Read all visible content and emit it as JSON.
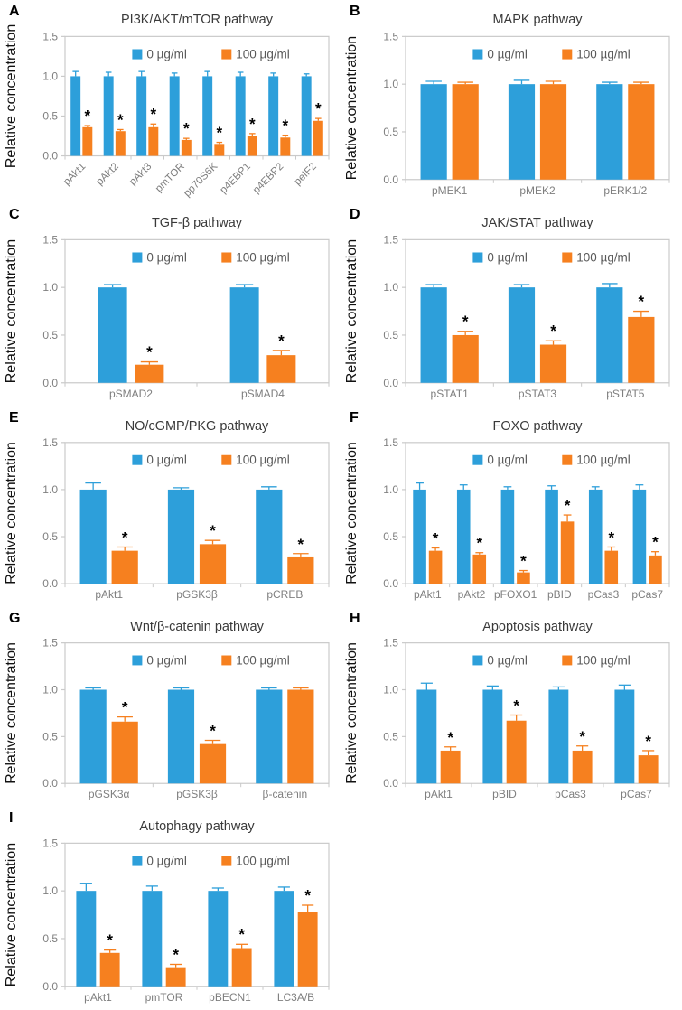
{
  "figure": {
    "ylabel": "Relative concentration",
    "legend_labels": [
      "0 µg/ml",
      "100 µg/ml"
    ],
    "significance_marker": "*"
  },
  "style": {
    "series_colors": [
      "#2D9FDA",
      "#F6801F"
    ],
    "axis_color": "#CACACA",
    "tick_label_color": "#7F7F7F",
    "xlabel_color": "#7F7F7F",
    "legend_text_color": "#595959",
    "title_color": "#3A3A3A",
    "ylabel_color": "#111111",
    "sig_color": "#000000",
    "background": "#FFFFFF"
  },
  "chart_data": [
    {
      "type": "bar",
      "panel": "A",
      "title": "PI3K/AKT/mTOR pathway",
      "ylabel": "Relative concentration",
      "ylim": [
        0,
        1.5
      ],
      "yticks": [
        "0.0",
        "0.5",
        "1.0",
        "1.5"
      ],
      "grid": false,
      "legend_position": "top-inside",
      "rotated_xticks": true,
      "categories": [
        "pAkt1",
        "pAkt2",
        "pAkt3",
        "pmTOR",
        "pp70S6K",
        "p4EBP1",
        "p4EBP2",
        "peIF2"
      ],
      "series": [
        {
          "name": "0 µg/ml",
          "values": [
            1.0,
            1.0,
            1.0,
            1.0,
            1.0,
            1.0,
            1.0,
            1.0
          ],
          "errors": [
            0.06,
            0.05,
            0.06,
            0.04,
            0.06,
            0.05,
            0.04,
            0.03
          ]
        },
        {
          "name": "100 µg/ml",
          "values": [
            0.36,
            0.31,
            0.36,
            0.2,
            0.15,
            0.25,
            0.23,
            0.44
          ],
          "errors": [
            0.02,
            0.02,
            0.04,
            0.02,
            0.02,
            0.03,
            0.03,
            0.03
          ]
        }
      ],
      "significance": [
        "*",
        "*",
        "*",
        "*",
        "*",
        "*",
        "*",
        "*"
      ]
    },
    {
      "type": "bar",
      "panel": "B",
      "title": "MAPK pathway",
      "ylabel": "Relative concentration",
      "ylim": [
        0,
        1.5
      ],
      "yticks": [
        "0.0",
        "0.5",
        "1.0",
        "1.5"
      ],
      "grid": false,
      "legend_position": "top-inside",
      "rotated_xticks": false,
      "categories": [
        "pMEK1",
        "pMEK2",
        "pERK1/2"
      ],
      "series": [
        {
          "name": "0 µg/ml",
          "values": [
            1.0,
            1.0,
            1.0
          ],
          "errors": [
            0.03,
            0.04,
            0.02
          ]
        },
        {
          "name": "100 µg/ml",
          "values": [
            1.0,
            1.0,
            1.0
          ],
          "errors": [
            0.02,
            0.03,
            0.02
          ]
        }
      ],
      "significance": [
        "",
        "",
        ""
      ]
    },
    {
      "type": "bar",
      "panel": "C",
      "title": "TGF-β pathway",
      "ylabel": "Relative concentration",
      "ylim": [
        0,
        1.5
      ],
      "yticks": [
        "0.0",
        "0.5",
        "1.0",
        "1.5"
      ],
      "grid": false,
      "legend_position": "top-inside",
      "rotated_xticks": false,
      "categories": [
        "pSMAD2",
        "pSMAD4"
      ],
      "series": [
        {
          "name": "0 µg/ml",
          "values": [
            1.0,
            1.0
          ],
          "errors": [
            0.03,
            0.03
          ]
        },
        {
          "name": "100 µg/ml",
          "values": [
            0.19,
            0.29
          ],
          "errors": [
            0.03,
            0.05
          ]
        }
      ],
      "significance": [
        "*",
        "*"
      ]
    },
    {
      "type": "bar",
      "panel": "D",
      "title": "JAK/STAT pathway",
      "ylabel": "Relative concentration",
      "ylim": [
        0,
        1.5
      ],
      "yticks": [
        "0.0",
        "0.5",
        "1.0",
        "1.5"
      ],
      "grid": false,
      "legend_position": "top-inside",
      "rotated_xticks": false,
      "categories": [
        "pSTAT1",
        "pSTAT3",
        "pSTAT5"
      ],
      "series": [
        {
          "name": "0 µg/ml",
          "values": [
            1.0,
            1.0,
            1.0
          ],
          "errors": [
            0.03,
            0.03,
            0.04
          ]
        },
        {
          "name": "100 µg/ml",
          "values": [
            0.5,
            0.4,
            0.69
          ],
          "errors": [
            0.04,
            0.04,
            0.06
          ]
        }
      ],
      "significance": [
        "*",
        "*",
        "*"
      ]
    },
    {
      "type": "bar",
      "panel": "E",
      "title": "NO/cGMP/PKG pathway",
      "ylabel": "Relative concentration",
      "ylim": [
        0,
        1.5
      ],
      "yticks": [
        "0.0",
        "0.5",
        "1.0",
        "1.5"
      ],
      "grid": false,
      "legend_position": "top-inside",
      "rotated_xticks": false,
      "categories": [
        "pAkt1",
        "pGSK3β",
        "pCREB"
      ],
      "series": [
        {
          "name": "0 µg/ml",
          "values": [
            1.0,
            1.0,
            1.0
          ],
          "errors": [
            0.07,
            0.02,
            0.03
          ]
        },
        {
          "name": "100 µg/ml",
          "values": [
            0.35,
            0.42,
            0.28
          ],
          "errors": [
            0.04,
            0.04,
            0.04
          ]
        }
      ],
      "significance": [
        "*",
        "*",
        "*"
      ]
    },
    {
      "type": "bar",
      "panel": "F",
      "title": "FOXO pathway",
      "ylabel": "Relative concentration",
      "ylim": [
        0,
        1.5
      ],
      "yticks": [
        "0.0",
        "0.5",
        "1.0",
        "1.5"
      ],
      "grid": false,
      "legend_position": "top-inside",
      "rotated_xticks": false,
      "categories": [
        "pAkt1",
        "pAkt2",
        "pFOXO1",
        "pBID",
        "pCas3",
        "pCas7"
      ],
      "series": [
        {
          "name": "0 µg/ml",
          "values": [
            1.0,
            1.0,
            1.0,
            1.0,
            1.0,
            1.0
          ],
          "errors": [
            0.07,
            0.05,
            0.03,
            0.04,
            0.03,
            0.05
          ]
        },
        {
          "name": "100 µg/ml",
          "values": [
            0.35,
            0.31,
            0.12,
            0.66,
            0.35,
            0.3
          ],
          "errors": [
            0.03,
            0.02,
            0.02,
            0.07,
            0.04,
            0.04
          ]
        }
      ],
      "significance": [
        "*",
        "*",
        "*",
        "*",
        "*",
        "*"
      ]
    },
    {
      "type": "bar",
      "panel": "G",
      "title": "Wnt/β-catenin pathway",
      "ylabel": "Relative concentration",
      "ylim": [
        0,
        1.5
      ],
      "yticks": [
        "0.0",
        "0.5",
        "1.0",
        "1.5"
      ],
      "grid": false,
      "legend_position": "top-inside",
      "rotated_xticks": false,
      "categories": [
        "pGSK3α",
        "pGSK3β",
        "β-catenin"
      ],
      "series": [
        {
          "name": "0 µg/ml",
          "values": [
            1.0,
            1.0,
            1.0
          ],
          "errors": [
            0.02,
            0.02,
            0.02
          ]
        },
        {
          "name": "100 µg/ml",
          "values": [
            0.66,
            0.42,
            1.0
          ],
          "errors": [
            0.05,
            0.04,
            0.02
          ]
        }
      ],
      "significance": [
        "*",
        "*",
        ""
      ]
    },
    {
      "type": "bar",
      "panel": "H",
      "title": "Apoptosis pathway",
      "ylabel": "Relative concentration",
      "ylim": [
        0,
        1.5
      ],
      "yticks": [
        "0.0",
        "0.5",
        "1.0",
        "1.5"
      ],
      "grid": false,
      "legend_position": "top-inside",
      "rotated_xticks": false,
      "categories": [
        "pAkt1",
        "pBID",
        "pCas3",
        "pCas7"
      ],
      "series": [
        {
          "name": "0 µg/ml",
          "values": [
            1.0,
            1.0,
            1.0,
            1.0
          ],
          "errors": [
            0.07,
            0.04,
            0.03,
            0.05
          ]
        },
        {
          "name": "100 µg/ml",
          "values": [
            0.35,
            0.67,
            0.35,
            0.3
          ],
          "errors": [
            0.04,
            0.06,
            0.05,
            0.05
          ]
        }
      ],
      "significance": [
        "*",
        "*",
        "*",
        "*"
      ]
    },
    {
      "type": "bar",
      "panel": "I",
      "title": "Autophagy pathway",
      "ylabel": "Relative concentration",
      "ylim": [
        0,
        1.5
      ],
      "yticks": [
        "0.0",
        "0.5",
        "1.0",
        "1.5"
      ],
      "grid": false,
      "legend_position": "top-inside",
      "rotated_xticks": false,
      "categories": [
        "pAkt1",
        "pmTOR",
        "pBECN1",
        "LC3A/B"
      ],
      "series": [
        {
          "name": "0 µg/ml",
          "values": [
            1.0,
            1.0,
            1.0,
            1.0
          ],
          "errors": [
            0.08,
            0.05,
            0.03,
            0.04
          ]
        },
        {
          "name": "100 µg/ml",
          "values": [
            0.35,
            0.2,
            0.4,
            0.78
          ],
          "errors": [
            0.03,
            0.03,
            0.04,
            0.07
          ]
        }
      ],
      "significance": [
        "*",
        "*",
        "*",
        "*"
      ]
    }
  ]
}
